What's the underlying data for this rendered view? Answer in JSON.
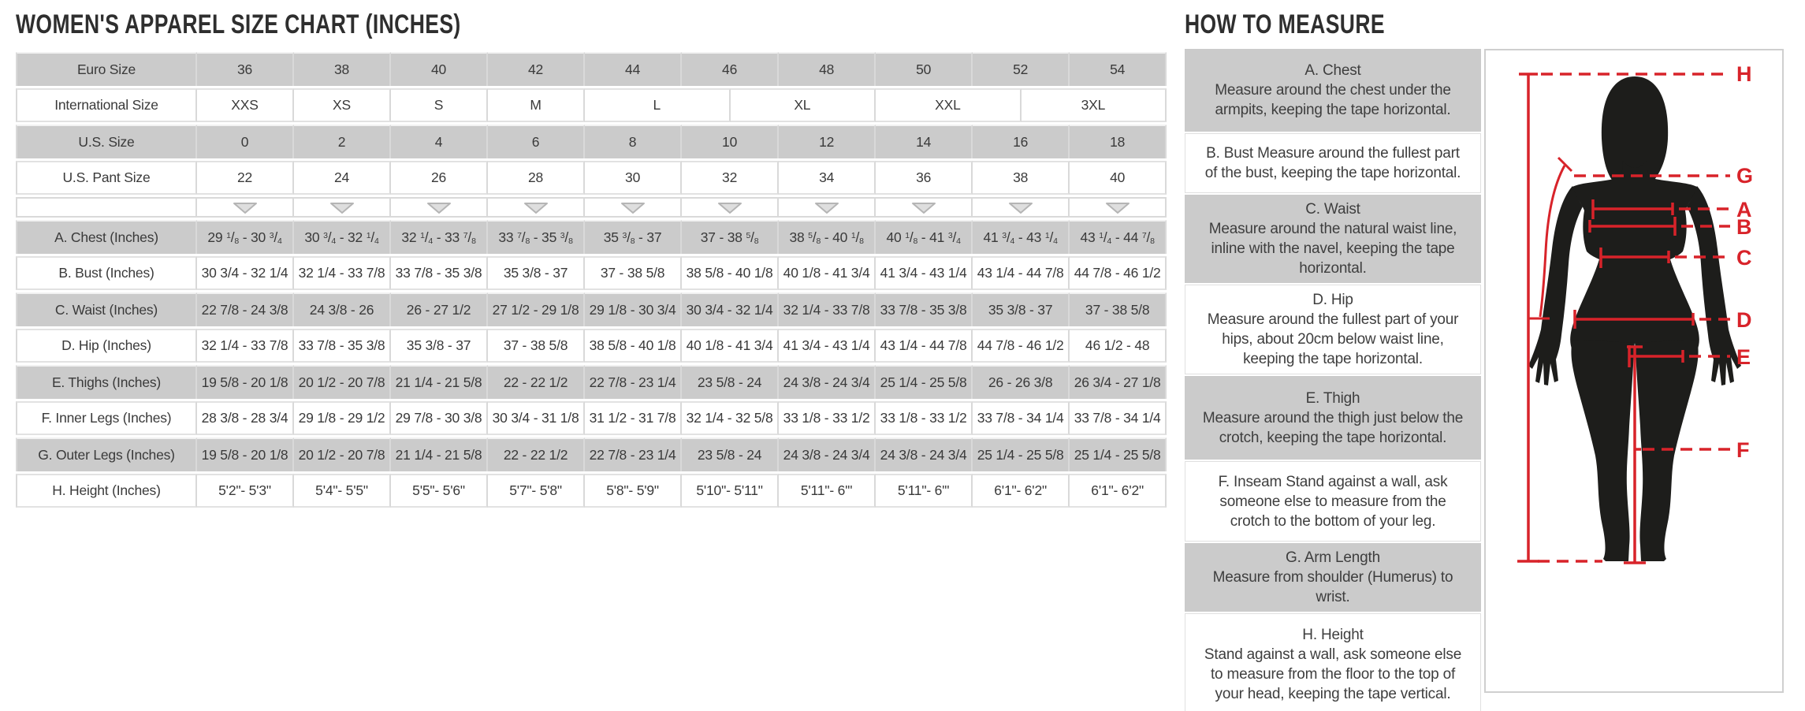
{
  "title": "WOMEN'S APPAREL SIZE CHART (INCHES)",
  "size_table": {
    "rows": [
      {
        "label": "Euro Size",
        "shade": "gray",
        "type": "sizes",
        "values": [
          "36",
          "38",
          "40",
          "42",
          "44",
          "46",
          "48",
          "50",
          "52",
          "54"
        ]
      },
      {
        "label": "International Size",
        "shade": "white",
        "type": "sizes",
        "values": [
          "XXS",
          "XS",
          "S",
          "M",
          "L",
          "XL",
          "XXL",
          "3XL"
        ],
        "spans": [
          2,
          2,
          2,
          2,
          3,
          3,
          3,
          3
        ]
      },
      {
        "label": "U.S. Size",
        "shade": "gray",
        "type": "sizes",
        "values": [
          "0",
          "2",
          "4",
          "6",
          "8",
          "10",
          "12",
          "14",
          "16",
          "18"
        ]
      },
      {
        "label": "U.S. Pant Size",
        "shade": "white",
        "type": "sizes",
        "values": [
          "22",
          "24",
          "26",
          "28",
          "30",
          "32",
          "34",
          "36",
          "38",
          "40"
        ]
      },
      {
        "label": "",
        "shade": "white",
        "type": "triangles"
      },
      {
        "label": "A. Chest (Inches)",
        "shade": "gray",
        "type": "sizes",
        "superscript_fractions": true,
        "values": [
          "29 1/8 - 30 3/4",
          "30 3/4 - 32 1/4",
          "32 1/4 - 33 7/8",
          "33 7/8 - 35 3/8",
          "35 3/8 - 37",
          "37 - 38 5/8",
          "38 5/8 - 40 1/8",
          "40 1/8 - 41 3/4",
          "41 3/4 - 43 1/4",
          "43 1/4 - 44 7/8"
        ]
      },
      {
        "label": "B. Bust (Inches)",
        "shade": "white",
        "type": "sizes",
        "values": [
          "30 3/4 - 32 1/4",
          "32 1/4 - 33 7/8",
          "33 7/8 - 35 3/8",
          "35 3/8 - 37",
          "37 - 38 5/8",
          "38 5/8 - 40 1/8",
          "40 1/8 - 41 3/4",
          "41 3/4 - 43 1/4",
          "43 1/4 - 44 7/8",
          "44 7/8 - 46 1/2"
        ]
      },
      {
        "label": "C. Waist (Inches)",
        "shade": "gray",
        "type": "sizes",
        "values": [
          "22 7/8 - 24 3/8",
          "24 3/8 - 26",
          "26 - 27 1/2",
          "27 1/2 - 29 1/8",
          "29 1/8 - 30 3/4",
          "30 3/4 - 32 1/4",
          "32 1/4 - 33 7/8",
          "33 7/8 - 35 3/8",
          "35 3/8 - 37",
          "37 - 38 5/8"
        ]
      },
      {
        "label": "D. Hip (Inches)",
        "shade": "white",
        "type": "sizes",
        "values": [
          "32 1/4 - 33 7/8",
          "33 7/8 - 35 3/8",
          "35 3/8 - 37",
          "37 - 38 5/8",
          "38 5/8 - 40 1/8",
          "40 1/8 - 41 3/4",
          "41 3/4 - 43 1/4",
          "43 1/4 - 44 7/8",
          "44 7/8 - 46 1/2",
          "46 1/2 - 48"
        ]
      },
      {
        "label": "E. Thighs (Inches)",
        "shade": "gray",
        "type": "sizes",
        "values": [
          "19 5/8 - 20 1/8",
          "20 1/2 - 20 7/8",
          "21 1/4 - 21 5/8",
          "22 - 22 1/2",
          "22 7/8 - 23 1/4",
          "23 5/8 - 24",
          "24 3/8 - 24 3/4",
          "25 1/4 - 25 5/8",
          "26 - 26 3/8",
          "26 3/4 - 27 1/8"
        ]
      },
      {
        "label": "F. Inner Legs (Inches)",
        "shade": "white",
        "type": "sizes",
        "values": [
          "28 3/8 - 28 3/4",
          "29 1/8 - 29 1/2",
          "29 7/8 - 30 3/8",
          "30 3/4 - 31 1/8",
          "31 1/2 - 31 7/8",
          "32 1/4 - 32 5/8",
          "33 1/8 - 33 1/2",
          "33 1/8 - 33 1/2",
          "33 7/8 - 34 1/4",
          "33 7/8 - 34 1/4"
        ]
      },
      {
        "label": "G. Outer Legs (Inches)",
        "shade": "gray",
        "type": "sizes",
        "values": [
          "19 5/8 - 20 1/8",
          "20 1/2 - 20 7/8",
          "21 1/4 - 21 5/8",
          "22 - 22 1/2",
          "22 7/8 - 23 1/4",
          "23 5/8 - 24",
          "24 3/8 - 24 3/4",
          "24 3/8 - 24 3/4",
          "25 1/4 - 25 5/8",
          "25 1/4 - 25 5/8"
        ]
      },
      {
        "label": "H. Height (Inches)",
        "shade": "white",
        "type": "sizes",
        "values": [
          "5'2\"- 5'3\"",
          "5'4\"- 5'5\"",
          "5'5\"- 5'6\"",
          "5'7\"- 5'8\"",
          "5'8\"- 5'9\"",
          "5'10\"- 5'11\"",
          "5'11\"- 6'\"",
          "5'11\"- 6'\"",
          "6'1\"- 6'2\"",
          "6'1\"- 6'2\""
        ]
      }
    ]
  },
  "how_to_measure": {
    "title": "HOW TO MEASURE",
    "sections": [
      {
        "heading": "A. Chest",
        "inline": false,
        "shade": "gray",
        "text": "Measure around the chest under the armpits, keeping the tape horizontal."
      },
      {
        "heading": "B. Bust",
        "inline": true,
        "shade": "white",
        "text": "Measure around the fullest part of the bust, keeping the tape horizontal."
      },
      {
        "heading": "C. Waist",
        "inline": false,
        "shade": "gray",
        "text": "Measure around the natural waist line, inline with the navel, keeping the tape horizontal."
      },
      {
        "heading": "D. Hip",
        "inline": false,
        "shade": "white",
        "text": "Measure around the fullest part of your hips, about 20cm below waist line, keeping the tape horizontal."
      },
      {
        "heading": "E. Thigh",
        "inline": false,
        "shade": "gray",
        "text": "Measure around the thigh just below the crotch, keeping the tape horizontal."
      },
      {
        "heading": "F. Inseam",
        "inline": true,
        "shade": "white",
        "text": "Stand against a wall, ask someone else to measure from the crotch to the bottom of your leg."
      },
      {
        "heading": "G. Arm Length",
        "inline": false,
        "shade": "gray",
        "text": "Measure from shoulder (Humerus) to wrist."
      },
      {
        "heading": "H. Height",
        "inline": false,
        "shade": "white",
        "text": "Stand against a wall, ask someone else to measure from the floor to the top of your head, keeping the tape vertical."
      }
    ],
    "figure_labels": [
      "H",
      "G",
      "A",
      "B",
      "C",
      "D",
      "E",
      "F"
    ]
  },
  "colors": {
    "accent_red": "#d8232a",
    "row_gray": "#cbcbcb",
    "border_gray": "#d9d9d9",
    "text_dark": "#3a3a3a",
    "silhouette_black": "#1d1d1b"
  }
}
